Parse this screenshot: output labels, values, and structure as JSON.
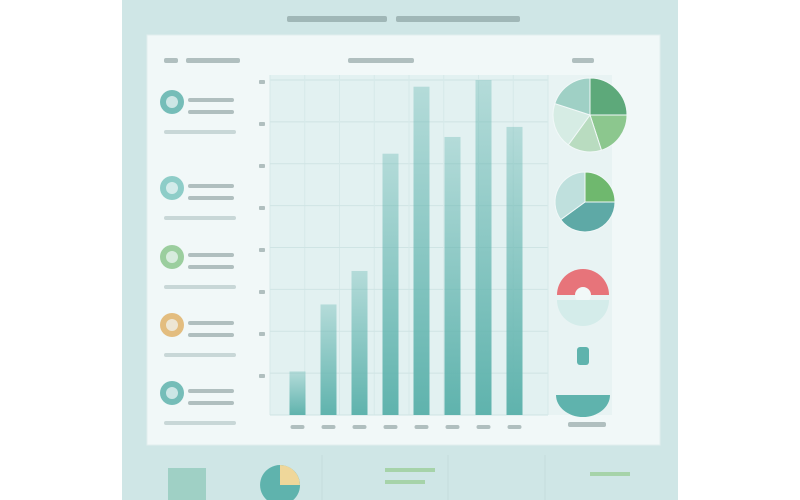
{
  "chart_data": [
    {
      "type": "bar",
      "categories": [
        null,
        null,
        null,
        null,
        null,
        null,
        null,
        null
      ],
      "values": [
        13,
        33,
        43,
        78,
        98,
        83,
        100,
        86
      ],
      "color": "#5fb3ad",
      "ylim": [
        0,
        100
      ],
      "grid": true
    },
    {
      "type": "pie",
      "values": [
        25,
        20,
        15,
        20,
        20
      ],
      "colors": [
        "#5da97a",
        "#8cc78e",
        "#b9dcc0",
        "#d6ece4",
        "#9fd0c5"
      ]
    },
    {
      "type": "pie",
      "values": [
        25,
        40,
        35
      ],
      "colors": [
        "#6fb86e",
        "#5ea9a6",
        "#bfe0dd"
      ]
    }
  ]
}
